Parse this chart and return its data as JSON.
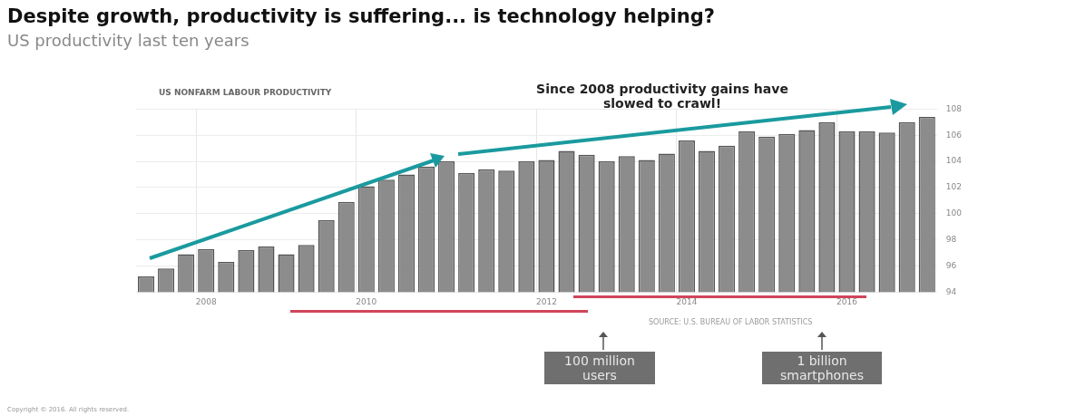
{
  "chart_data": {
    "type": "bar",
    "title": "Despite growth, productivity is suffering... is technology helping?",
    "subtitle": "US productivity last ten years",
    "categories": [
      null,
      null,
      null,
      "2008",
      null,
      null,
      null,
      null,
      null,
      null,
      null,
      "2010",
      null,
      null,
      null,
      null,
      null,
      null,
      null,
      null,
      "2012",
      null,
      null,
      null,
      null,
      null,
      null,
      "2014",
      null,
      null,
      null,
      null,
      null,
      null,
      null,
      "2016",
      null,
      null,
      null,
      null
    ],
    "values": [
      95.2,
      95.8,
      96.9,
      97.3,
      96.3,
      97.2,
      97.5,
      96.9,
      97.6,
      99.5,
      100.9,
      102.1,
      102.6,
      103.0,
      103.6,
      104.0,
      103.1,
      103.4,
      103.3,
      104.0,
      104.1,
      104.8,
      104.5,
      104.0,
      104.4,
      104.1,
      104.6,
      105.6,
      104.8,
      105.2,
      106.3,
      105.9,
      106.1,
      106.4,
      107.0,
      106.3,
      106.3,
      106.2,
      107.0,
      107.4
    ],
    "color": "#8c8c8c",
    "ylim": [
      94,
      108
    ],
    "yticks": [
      94,
      96,
      98,
      100,
      102,
      104,
      106,
      108
    ],
    "grid": true,
    "legend": false,
    "annotations": [
      "US NONFARM LABOUR PRODUCTIVITY",
      "Since 2008 productivity gains have slowed to crawl!",
      "SOURCE: U.S. BUREAU OF LABOR STATISTICS",
      "100 million users",
      "1 billion smartphones",
      "Copyright © 2016. All rights reserved."
    ]
  }
}
